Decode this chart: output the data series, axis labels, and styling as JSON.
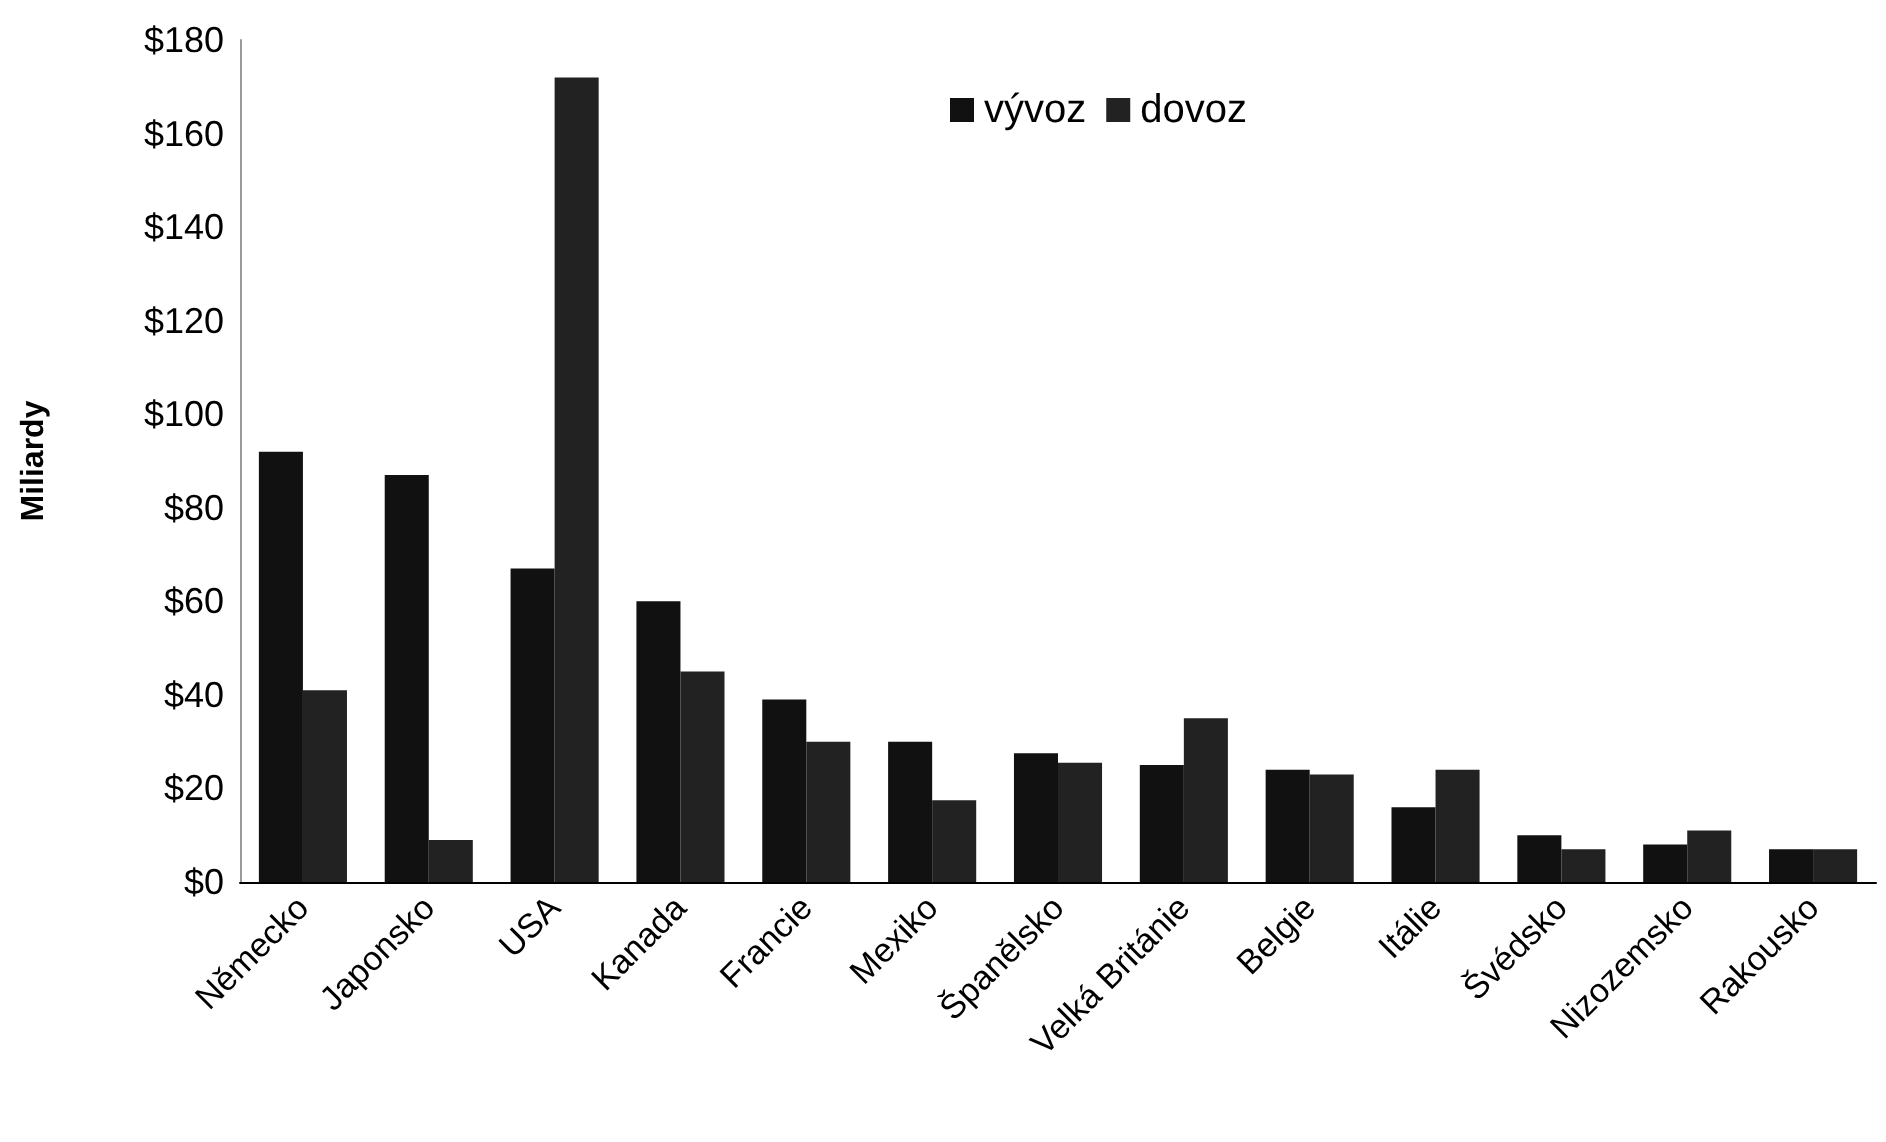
{
  "chart_data": {
    "type": "bar",
    "ylabel": "Miliardy",
    "categories": [
      "Německo",
      "Japonsko",
      "USA",
      "Kanada",
      "Francie",
      "Mexiko",
      "Španělsko",
      "Velká Británie",
      "Belgie",
      "Itálie",
      "Švédsko",
      "Nizozemsko",
      "Rakousko"
    ],
    "series": [
      {
        "name": "vývoz",
        "color": "#111111",
        "values": [
          92,
          87,
          67,
          60,
          39,
          30,
          27.5,
          25,
          24,
          16,
          10,
          8,
          7
        ]
      },
      {
        "name": "dovoz",
        "color": "#222222",
        "values": [
          41,
          9,
          172,
          45,
          30,
          17.5,
          25.5,
          35,
          23,
          24,
          7,
          11,
          7
        ]
      }
    ],
    "ylim": [
      0,
      180
    ],
    "yticks": [
      {
        "value": 0,
        "label": "$0"
      },
      {
        "value": 20,
        "label": "$20"
      },
      {
        "value": 40,
        "label": "$40"
      },
      {
        "value": 60,
        "label": "$60"
      },
      {
        "value": 80,
        "label": "$80"
      },
      {
        "value": 100,
        "label": "$100"
      },
      {
        "value": 120,
        "label": "$120"
      },
      {
        "value": 140,
        "label": "$140"
      },
      {
        "value": 160,
        "label": "$160"
      },
      {
        "value": 180,
        "label": "$180"
      }
    ],
    "grid": false,
    "legend": "top right"
  }
}
